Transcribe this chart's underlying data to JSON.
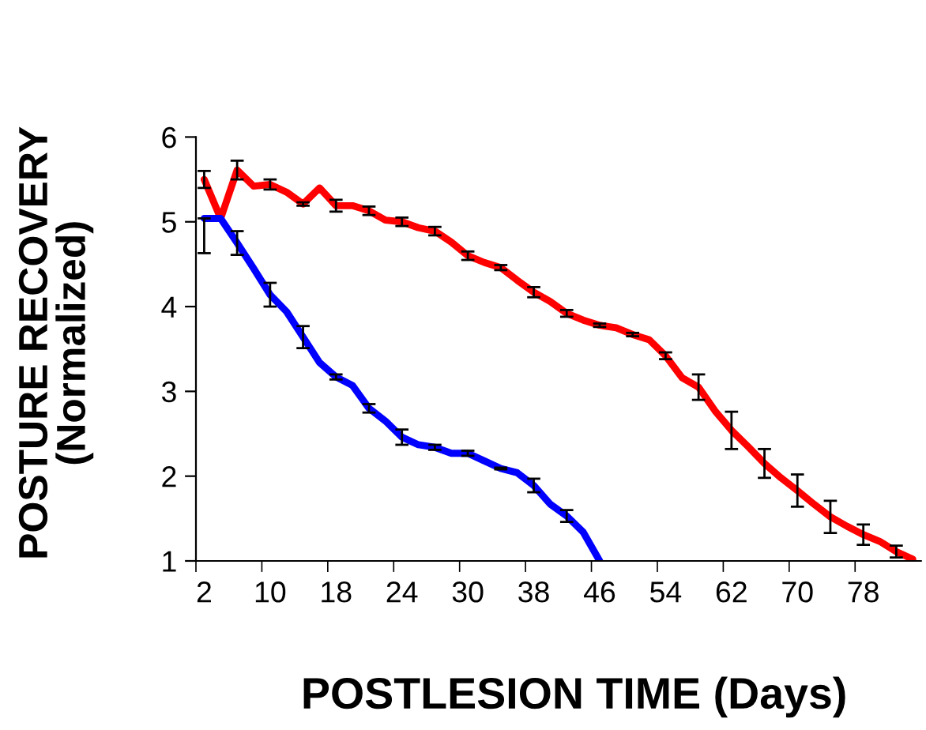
{
  "chart_data": {
    "type": "line",
    "xlabel": "POSTLESION TIME (Days)",
    "ylabel": "POSTURE RECOVERY\n(Normalized)",
    "categories": [
      "2",
      null,
      null,
      null,
      "10",
      null,
      null,
      null,
      "18",
      null,
      null,
      null,
      "24",
      null,
      null,
      null,
      "30",
      null,
      null,
      null,
      "38",
      null,
      null,
      null,
      "46",
      null,
      null,
      null,
      "54",
      null,
      null,
      null,
      "62",
      null,
      null,
      null,
      "70",
      null,
      null,
      null,
      "78",
      null,
      null,
      null
    ],
    "ylim": [
      1,
      6
    ],
    "yticks": [
      1,
      2,
      3,
      4,
      5,
      6
    ],
    "grid": false,
    "legend": false,
    "marker": "none",
    "line_style": "solid",
    "series": [
      {
        "color": "#ff0000",
        "values": [
          5.5,
          5.04,
          5.61,
          5.42,
          5.44,
          5.35,
          5.21,
          5.4,
          5.19,
          5.19,
          5.13,
          5.02,
          5.0,
          4.93,
          4.89,
          4.76,
          4.6,
          4.52,
          4.46,
          4.31,
          4.17,
          4.06,
          3.92,
          3.84,
          3.78,
          3.75,
          3.67,
          3.61,
          3.42,
          3.16,
          3.05,
          2.77,
          2.54,
          2.35,
          2.15,
          1.98,
          1.83,
          1.67,
          1.52,
          1.41,
          1.31,
          1.23,
          1.11,
          1.02
        ],
        "errors": [
          0.1,
          null,
          0.11,
          null,
          0.06,
          null,
          0.02,
          null,
          0.07,
          null,
          0.05,
          null,
          0.05,
          null,
          0.05,
          null,
          0.05,
          null,
          0.03,
          null,
          0.06,
          null,
          0.04,
          null,
          0.02,
          null,
          0.02,
          null,
          0.04,
          null,
          0.15,
          null,
          0.22,
          null,
          0.17,
          null,
          0.19,
          null,
          0.19,
          null,
          0.12,
          null,
          0.07,
          null
        ]
      },
      {
        "color": "#0000ff",
        "values": [
          5.04,
          5.04,
          4.75,
          4.45,
          4.14,
          3.94,
          3.64,
          3.34,
          3.17,
          3.07,
          2.8,
          2.65,
          2.46,
          2.37,
          2.34,
          2.27,
          2.27,
          2.18,
          2.09,
          2.04,
          1.89,
          1.67,
          1.53,
          1.34,
          1.0,
          null,
          null,
          null,
          null,
          null,
          null,
          null,
          null,
          null,
          null,
          null,
          null,
          null,
          null,
          null,
          null,
          null,
          null,
          null
        ],
        "errors": [
          [
            4.63,
            5.04
          ],
          null,
          0.14,
          null,
          0.14,
          null,
          0.13,
          null,
          0.03,
          null,
          0.05,
          null,
          0.09,
          null,
          0.03,
          null,
          0.03,
          null,
          0.01,
          null,
          0.08,
          null,
          0.07,
          null,
          null,
          null,
          null,
          null,
          null,
          null,
          null,
          null,
          null,
          null,
          null,
          null,
          null,
          null,
          null,
          null,
          null,
          null,
          null,
          null
        ]
      }
    ]
  }
}
